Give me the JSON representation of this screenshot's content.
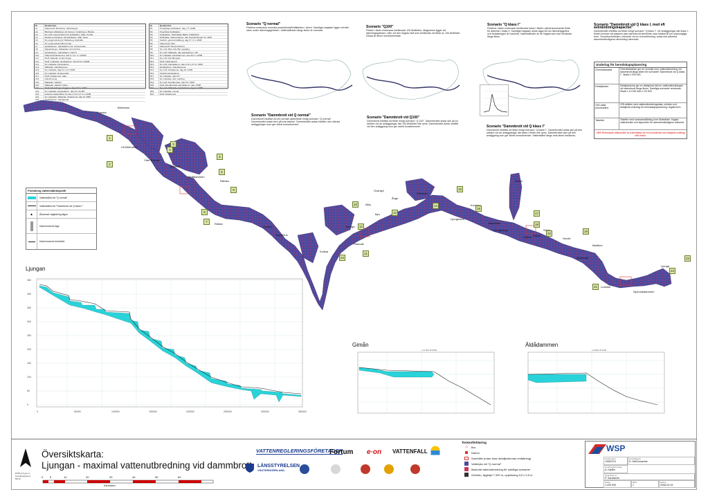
{
  "legend_table_left": {
    "header": [
      "Nr",
      "Benämning"
    ],
    "rows": [
      [
        "A1",
        "Vattennivå i Bönhamn, Handrauppa"
      ],
      [
        "A2",
        "Bönhamn-Mölleskog vid dyngen i Kolarbonen, Blocke"
      ],
      [
        "A3",
        "Ny nivå i uppgrundning för kraftstation, Malt, Oryzka"
      ],
      [
        "A4",
        "Rautam-Grörslaver vid kraftstation, Malt, Ospa"
      ],
      [
        "A5",
        "Ny uppgrundning för Mölleskog, Rokhälla"
      ],
      [
        "A6",
        "Ny uppgrundning Blyt tronde"
      ],
      [
        "A7",
        "Handsdamm, Handsdamm-sjö, Jorgerenska"
      ],
      [
        "A8",
        "Ålgsaudingen, Halkaplats vid Grönrfra"
      ],
      [
        "A9",
        "Handsdamm, Handsdamm, Dölj rit."
      ],
      [
        "A10",
        "Vattennivå Muskmunt, dag 5 I 1m, 2 I 1/2009"
      ],
      [
        "A11",
        "Nivå mätstelle, Andermingen"
      ],
      [
        "A12",
        "Nivå i mätstelle, Handsdamm, dag 25.1m 42008"
      ],
      [
        "A13",
        "Ny mätstelle, Daminarnan"
      ],
      [
        "A14",
        "Mätstelle, Handstammer"
      ],
      [
        "A15",
        "Ny mätstelle, dag 5.2 m 8 I 2009"
      ],
      [
        "A16",
        "Ny mätstelle, Rockenplats"
      ],
      [
        "A17",
        "Nivå i Muskmund, Ulda"
      ],
      [
        "A18",
        "Lilla Rimning"
      ],
      [
        "A19",
        "Mätstelle, Vasbröt"
      ],
      [
        "A20",
        "Mätstelle, Vasbröt, lidget"
      ],
      [
        "A21",
        "Nivå vid Lövbergs-stryggon, dag 17.5 m 2007"
      ],
      [
        "A22",
        "Ny mätstelle, Handsdamm, dag 23 I 23.007"
      ],
      [
        "A23",
        "Kylsjöns vattenstånd, Ny dag 17.8 m 27.1 m 2008"
      ],
      [
        "A24",
        "Ny mätstelle i Mätstelle, Muskgrund, dag 8 I 2008"
      ],
      [
        "A25",
        "Handsdamm, Handgunda"
      ]
    ]
  },
  "legend_table_right": {
    "header": [
      "Nr",
      "Benämning"
    ],
    "rows": [
      [
        "B1",
        "Övergångs-kraftstation, dag 7.5 I 2008"
      ],
      [
        "B2",
        "Övergång-Kraftstation"
      ],
      [
        "B3",
        "Kraftstation, Nivåmätare Bättre Kraftstation"
      ],
      [
        "B4",
        "Nivåmätar, Vattenmätning, dag Kvarnbottengar 11 I 2007"
      ],
      [
        "B5",
        "Vasbröt, gammal Hällberg, dag 17 I 4 m 2008"
      ],
      [
        "B6",
        "Vattennivå i Alby"
      ],
      [
        "B7",
        "Vattennivå i Stora Flottning"
      ],
      [
        "B8",
        "Ny nivå i Blyt-nivå, Blyt uppgång"
      ],
      [
        "B9",
        "Ny nivå i Mätstelle, dag Handsdamm i 08"
      ],
      [
        "B10",
        "Ny mätstelle, Handstammer, dag 20.4 m 2008"
      ],
      [
        "B11",
        "Ny nivå i Rundbergets"
      ],
      [
        "B12",
        "Nivå i Nivåmätning"
      ],
      [
        "B13",
        "Ny nivå i Handsdamm, dag 11.5 m 27.2 I 2008"
      ],
      [
        "B14",
        "Handsdamm, Handstammer"
      ],
      [
        "B15",
        "Ny nivå i Muskgrund, dag 18 I 2009"
      ],
      [
        "B16",
        "Vasbröt-Handsdamm"
      ],
      [
        "B17",
        "Ny mätstelle, dag 15 I"
      ],
      [
        "B18",
        "Ny mätstelle, Alnö mätning"
      ],
      [
        "B19",
        "Ny nivå i Rundbergets, dag 8.4 I 2007"
      ],
      [
        "B20",
        "Nivå i Rundbergets Handsdamm, dag i 2008"
      ],
      [
        "B21",
        "Ny nivå i Mätstelle, Handsdamm dag 11 I 2008"
      ],
      [
        "B22",
        "Ny mätstelle, Ljunga"
      ],
      [
        "B23",
        "Nivå i Muskmund"
      ]
    ]
  },
  "scenarios": [
    {
      "title": "Scenario \"Q normal\"",
      "text": "Flödena motsvarar normala produktionsförhållanden i älven. Samtliga magasin ligger vid eller strax under dämningsgränsen. Vattenstånden längs älven är normala."
    },
    {
      "title": "Scenario \"Q100\"",
      "text": "Flöden i älven motsvarar beräknade 100-årsflöden. Magasinen ligger vid dämningsgränsen, eller vid den högsta nivå som beräknats vid flöde av 100-årsflödet. Dessa är älven överströmmade."
    },
    {
      "title": "Scenario \"Q klass I\"",
      "text": "Flödena i älven motsvarar beräknade klass I-flöden (dimensionerande flöde för dammar i klass I). Samtliga magasin antas ligga vid sin dämningsgräns och belastningen är maximal. Vattenstånden är de högsta som kan förväntas längs älven."
    },
    {
      "title": "Scenario \"Dammbrott vid Q klass I, med eft avbrändningskapacitet\"",
      "text": "Dammbrottet inträffar vid flöde enligt scenario \"Q klass I\". De anläggningar där klass I-flödet kommer att passera utan dammbrott simuleras vara intakta till sin ursprungliga form. Grundkonstruktion, inklusive vid en överströmning, antas inte påverka dammbrottsvågens utbredning nämnvärt."
    },
    {
      "title": "Scenario \"Dammbrott vid Q normal\"",
      "text": "Dammbrott inträffar vid ett normalt vattenflöde enligt scenario \"Q normal\". Dammbrottet antas bero på ena sektion. Dammbrottet antas inträffa i den största anläggningen som ger störst konsekvenser."
    },
    {
      "title": "Scenario \"Dammbrott vid Q100\"",
      "text": "Dammbrott inträffar vid flöde enligt scenario \"Q 100\". Dammbrottet antas ske på en sektion vid de anläggningar där 100-årsflödet inte ryms. Dammbrottet antas inträffa vid den anläggning som ger störst konsekvenser."
    },
    {
      "title": "Scenario \"Dammbrott vid Q klass I\"",
      "text": "Dammbrott inträffar vid flöde enligt scenario \"Q klass I\". Dammbrottet antas ske på den sektion vid de anläggningar där klass I-flödet inte ryms. Dammbrottet sker på den anläggning som ger störst konsekvenser. Vattenstånd längs hela älven beräknas."
    }
  ],
  "underlag": {
    "title": "Underlag för beredskapsplanering",
    "rows": [
      {
        "k": "Översiktskarta",
        "v": "Översiktskartan ger en översikt över vattenutbredning vid dammbrott längs älven för scenariet \"Dammbrott vid Q klass I\". Skala 1:200 000."
      },
      {
        "k": "Detaljkartor",
        "v": "Detaljkartorna ger en detaljerad bild av vattenutbredningen vid dammbrott längs älven. Samtliga scenarier redovisas. Skala 1:10 000 eller 1:20 000."
      },
      {
        "k": "GIS-skikt (Arcreader)",
        "v": "GIS-skikten med vattenutbredningsdata, ortofoto och detaljerat underlag för beredskapsplanering i digital form."
      },
      {
        "k": "Tabeller",
        "v": "Tabeller med sammanställning över flödestider, högsta vattennivåer och tidpunkter för dammbrottsvågens ankomst."
      }
    ],
    "note": "OBS! Redovisade vattennivåer är schematiska och bör kontrolleras mot detaljerat underlag inför beslut."
  },
  "map_legend": {
    "title": "Förklaring vattenståndsprofil",
    "items": [
      "Vattenstånd vid \"Q normal\"",
      "Vattenstånd vid \"Dammbrott vid Q klass I\"",
      "Ålnamnet vägledning lägen",
      "Dammrnamns läge",
      "Dammrnamns bröstnivå"
    ]
  },
  "places": [
    "Bönhamn",
    "Lill-Bönhamn",
    "Skällebo",
    "Äldådammen",
    "Ränsta",
    "Ytter-Ränsta",
    "Röttan",
    "Kollsta",
    "Sundet",
    "Östavall",
    "Alby",
    "Ovansjö",
    "Ånge",
    "Erikslund",
    "Ljungaverk",
    "Kovland",
    "Nedansjö",
    "Vikbro",
    "Mattfors",
    "Byn",
    "Ljungaskog",
    "Järkvissle",
    "Viskan",
    "Torpsbruk",
    "Ljunga",
    "Nyrundsdammen",
    "Lucksta",
    "Viloån",
    "Kiringa",
    "Fransta",
    "Stöde",
    "Hovde"
  ],
  "map_numbers": [
    "1",
    "2",
    "3",
    "4",
    "5",
    "6",
    "7",
    "8",
    "9",
    "10",
    "11",
    "12",
    "13",
    "14",
    "15",
    "16",
    "17",
    "18",
    "19",
    "20",
    "21",
    "22",
    "23",
    "24"
  ],
  "profiles": {
    "ljungan_title": "Ljungan",
    "gimån_title": "Gimån",
    "aldadammen_title": "Äldådammen",
    "ljungan_x": [
      "0",
      "50000",
      "100000",
      "150000",
      "200000",
      "250000",
      "300000",
      "350000"
    ],
    "ljungan_y": [
      "450",
      "400",
      "350",
      "300",
      "250",
      "200",
      "150",
      "100",
      "50",
      "0"
    ],
    "mini_labels": {
      "gim": "L=2 000 till 5000",
      "alda": "L=2000 till 1000"
    }
  },
  "title_block": {
    "map_title_line1": "Översiktskarta:",
    "map_title_line2": "Ljungan - maximal vattenutbredning vid dammbrott",
    "scale_ticks": [
      "0",
      "5",
      "10",
      "20",
      "30",
      "40",
      "50",
      "60"
    ],
    "scale_unit": "Kilometer",
    "small_ref": "RT90 2,5 gon V, Koordinatsystem RH70",
    "logos": {
      "vrf": "VATTENREGLERINGSFÖRETAGEN",
      "fortum": "Fortum",
      "eon": "e·on",
      "vattenfall": "VATTENFALL",
      "lansstyrelsen": "LÄNSSTYRELSEN",
      "lansstyrelsen_sub": "VÄSTERNORRLAND",
      "wsp": "WSP"
    },
    "legend_title": "Teckenförklaring",
    "legend_items": [
      "Bro",
      "Damm",
      "Samhälle (rutan visar detaljkartornas omfattning)",
      "Vattenyta vid \"Q normal\"",
      "Maximal vattenutbredning för samtliga scenarier",
      "Ortofoto, flyghöjd 7 000 m, upplösning 0,5 x 0,5 m"
    ],
    "fields": {
      "uppdragsnr_label": "Uppdragsnr",
      "uppdragsnr": "10081213",
      "handlaggare_label": "Handläggare",
      "handlaggare": "D. McDonnachie",
      "upprattad_label": "Upprättad av",
      "upprattad": "P. Sandström",
      "skala_label": "Skala",
      "skala": "1:200 000",
      "blad_label": "Blad",
      "blad": "1",
      "datum_label": "Datum",
      "datum": "2008-03-19",
      "ansvarig_label": "Uppdragsansvarig",
      "ansvarig": "A. Kjellén"
    }
  },
  "colors": {
    "water": "#4b4aa0",
    "flood": "#c9385d",
    "profile_fill": "#29d3d9",
    "border": "#999999"
  }
}
